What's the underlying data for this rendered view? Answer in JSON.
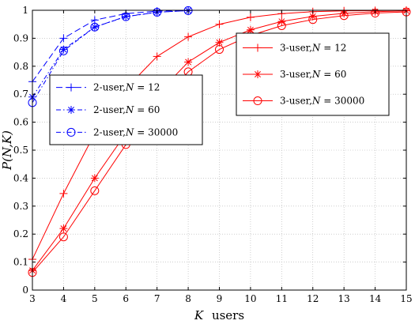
{
  "chart_data": {
    "type": "line",
    "title": "",
    "xlabel_var": "K",
    "xlabel_word": "users",
    "ylabel": "P(N,K)",
    "xlim": [
      3,
      15
    ],
    "ylim": [
      0,
      1
    ],
    "xticks": [
      3,
      4,
      5,
      6,
      7,
      8,
      9,
      10,
      11,
      12,
      13,
      14,
      15
    ],
    "yticks": [
      0,
      0.1,
      0.2,
      0.3,
      0.4,
      0.5,
      0.6,
      0.7,
      0.8,
      0.9,
      1
    ],
    "ytick_labels": [
      "0",
      "0.1",
      "0.2",
      "0.3",
      "0.4",
      "0.5",
      "0.6",
      "0.7",
      "0.8",
      "0.9",
      "1"
    ],
    "grid": true,
    "colors": {
      "blue": "#0000ff",
      "red": "#ff0000",
      "grid": "#b0b0b0"
    },
    "legends": [
      {
        "placement": "upper-left",
        "series_indices": [
          0,
          1,
          2
        ]
      },
      {
        "placement": "upper-right",
        "series_indices": [
          3,
          4,
          5
        ]
      }
    ],
    "series": [
      {
        "name": "2-user, N = 12",
        "legend_prefix": "2-user,",
        "legend_var": "N",
        "legend_value": "12",
        "color": "#0000ff",
        "dash": "8,4",
        "marker": "plus",
        "x": [
          3,
          4,
          5,
          6,
          7,
          8
        ],
        "y": [
          0.745,
          0.9,
          0.965,
          0.988,
          0.997,
          1.0
        ]
      },
      {
        "name": "2-user, N = 60",
        "legend_prefix": "2-user,",
        "legend_var": "N",
        "legend_value": "60",
        "color": "#0000ff",
        "dash": "6,3,1.5,3",
        "marker": "star",
        "x": [
          3,
          4,
          5,
          6,
          7,
          8
        ],
        "y": [
          0.69,
          0.86,
          0.94,
          0.978,
          0.993,
          0.999
        ]
      },
      {
        "name": "2-user, N = 30000",
        "legend_prefix": "2-user,",
        "legend_var": "N",
        "legend_value": "30000",
        "color": "#0000ff",
        "dash": "6,3,1.5,3",
        "marker": "circle",
        "x": [
          3,
          4,
          5,
          6,
          7,
          8
        ],
        "y": [
          0.67,
          0.855,
          0.94,
          0.977,
          0.993,
          0.999
        ]
      },
      {
        "name": "3-user, N = 12",
        "legend_prefix": "3-user,",
        "legend_var": "N",
        "legend_value": "12",
        "color": "#ff0000",
        "dash": "",
        "marker": "plus",
        "x": [
          3,
          4,
          5,
          6,
          7,
          8,
          9,
          10,
          11,
          12,
          13,
          14,
          15
        ],
        "y": [
          0.11,
          0.345,
          0.56,
          0.72,
          0.835,
          0.905,
          0.95,
          0.975,
          0.988,
          0.995,
          0.998,
          0.999,
          1.0
        ]
      },
      {
        "name": "3-user, N = 60",
        "legend_prefix": "3-user,",
        "legend_var": "N",
        "legend_value": "60",
        "color": "#ff0000",
        "dash": "",
        "marker": "star",
        "x": [
          3,
          4,
          5,
          6,
          7,
          8,
          9,
          10,
          11,
          12,
          13,
          14,
          15
        ],
        "y": [
          0.07,
          0.22,
          0.4,
          0.56,
          0.7,
          0.815,
          0.885,
          0.93,
          0.96,
          0.978,
          0.989,
          0.995,
          0.998
        ]
      },
      {
        "name": "3-user, N = 30000",
        "legend_prefix": "3-user,",
        "legend_var": "N",
        "legend_value": "30000",
        "color": "#ff0000",
        "dash": "",
        "marker": "circle",
        "x": [
          3,
          4,
          5,
          6,
          7,
          8,
          9,
          10,
          11,
          12,
          13,
          14,
          15
        ],
        "y": [
          0.063,
          0.19,
          0.355,
          0.52,
          0.65,
          0.78,
          0.86,
          0.91,
          0.945,
          0.967,
          0.981,
          0.99,
          0.994
        ]
      }
    ]
  }
}
